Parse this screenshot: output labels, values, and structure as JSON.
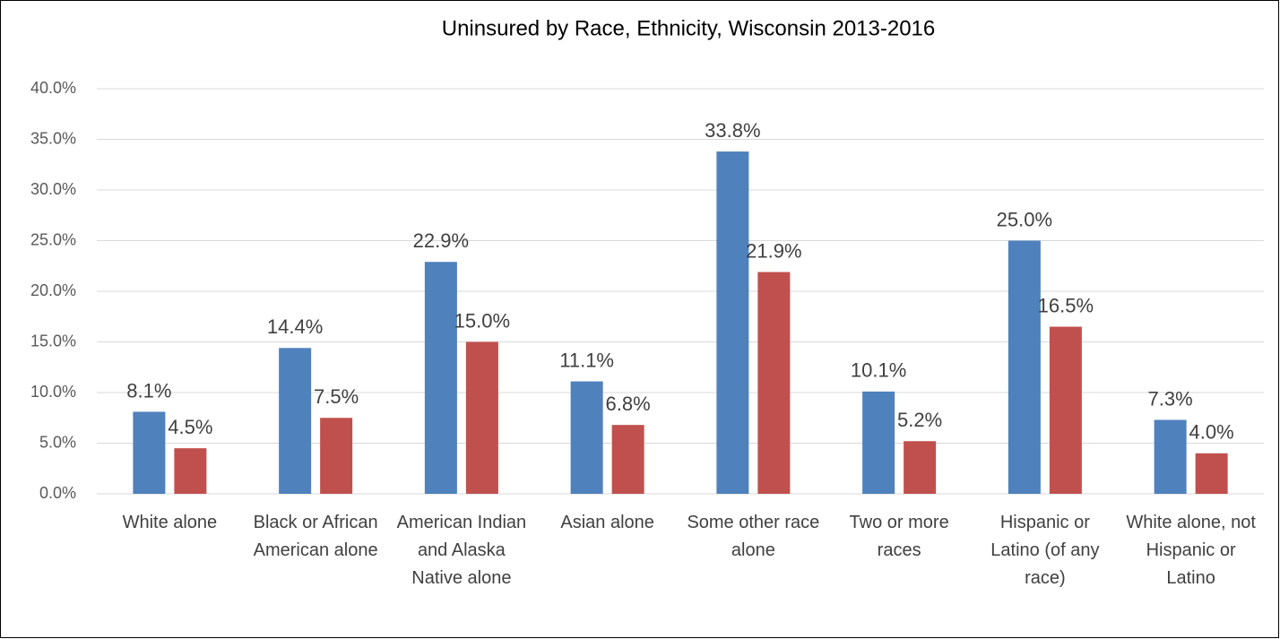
{
  "chart_data": {
    "type": "bar",
    "title": "Uninsured by Race, Ethnicity, Wisconsin 2013-2016",
    "categories": [
      "White alone",
      "Black or African American alone",
      "American Indian and Alaska Native alone",
      "Asian alone",
      "Some other race alone",
      "Two or more races",
      "Hispanic or Latino (of any race)",
      "White alone, not Hispanic or Latino"
    ],
    "series": [
      {
        "color": "#4f81bd",
        "values": [
          8.1,
          14.4,
          22.9,
          11.1,
          33.8,
          10.1,
          25.0,
          7.3
        ],
        "value_labels": [
          "8.1%",
          "14.4%",
          "22.9%",
          "11.1%",
          "33.8%",
          "10.1%",
          "25.0%",
          "7.3%"
        ]
      },
      {
        "color": "#c0504d",
        "values": [
          4.5,
          7.5,
          15.0,
          6.8,
          21.9,
          5.2,
          16.5,
          4.0
        ],
        "value_labels": [
          "4.5%",
          "7.5%",
          "15.0%",
          "6.8%",
          "21.9%",
          "5.2%",
          "16.5%",
          "4.0%"
        ]
      }
    ],
    "ylim": [
      0,
      40
    ],
    "yticks": [
      {
        "value": 0,
        "label": "0.0%"
      },
      {
        "value": 5,
        "label": "5.0%"
      },
      {
        "value": 10,
        "label": "10.0%"
      },
      {
        "value": 15,
        "label": "15.0%"
      },
      {
        "value": 20,
        "label": "20.0%"
      },
      {
        "value": 25,
        "label": "25.0%"
      },
      {
        "value": 30,
        "label": "30.0%"
      },
      {
        "value": 35,
        "label": "35.0%"
      },
      {
        "value": 40,
        "label": "40.0%"
      }
    ],
    "grid": true
  }
}
